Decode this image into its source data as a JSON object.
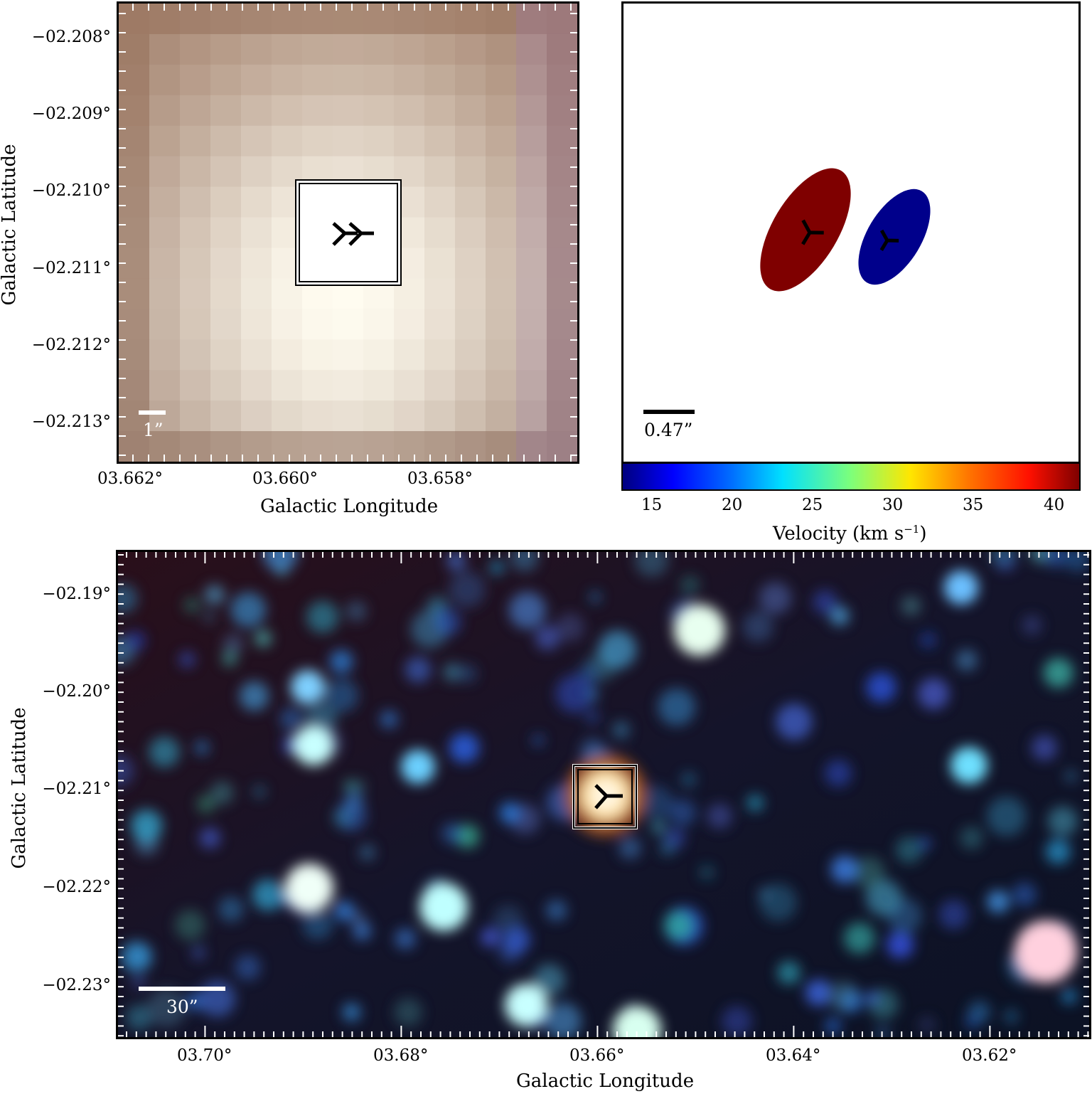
{
  "top_left": {
    "x_ticks": [
      "03.662°",
      "03.660°",
      "03.658°"
    ],
    "y_ticks": [
      "−02.208°",
      "−02.209°",
      "−02.210°",
      "−02.211°",
      "−02.212°",
      "−02.213°"
    ],
    "xlabel": "Galactic Longitude",
    "ylabel": "Galactic Latitude",
    "scale_label": "1”",
    "marker_icon": "radio-source-icon"
  },
  "top_right": {
    "scale_label": "0.47”",
    "colorbar_ticks": [
      "15",
      "20",
      "25",
      "30",
      "35",
      "40"
    ],
    "colorbar_label": "Velocity (km s",
    "colorbar_label_sup": "−1",
    "colorbar_label_end": ")",
    "colorbar_range": [
      13.3,
      41.6
    ],
    "components": [
      {
        "velocity": 41,
        "color": "#7f0000"
      },
      {
        "velocity": 15,
        "color": "#00008b"
      }
    ]
  },
  "bottom": {
    "x_ticks": [
      "03.70°",
      "03.68°",
      "03.66°",
      "03.64°",
      "03.62°"
    ],
    "y_ticks": [
      "−02.19°",
      "−02.20°",
      "−02.21°",
      "−02.22°",
      "−02.23°"
    ],
    "xlabel": "Galactic Longitude",
    "ylabel": "Galactic Latitude",
    "scale_label": "30”",
    "marker_icon": "radio-source-icon"
  }
}
